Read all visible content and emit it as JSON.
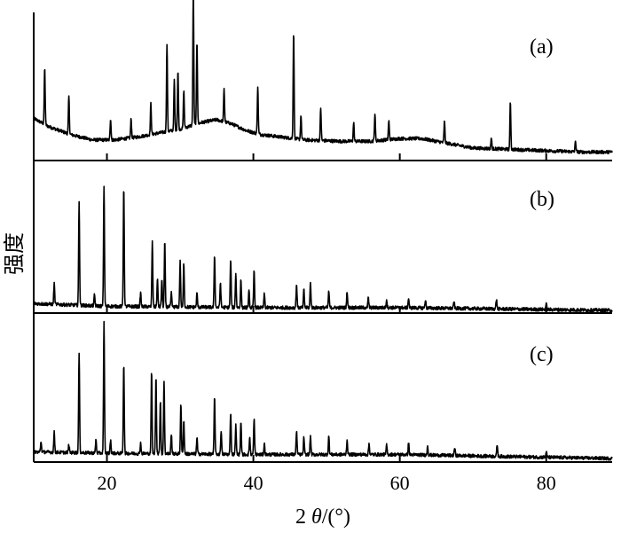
{
  "chart_data": {
    "type": "line",
    "title": "",
    "xlabel": "2θ/(°)",
    "ylabel": "强度",
    "xlim": [
      10,
      89
    ],
    "xticks": [
      20,
      40,
      60,
      80
    ],
    "xtick_labels": [
      "20",
      "40",
      "60",
      "80"
    ],
    "grid": false,
    "panels": [
      {
        "label": "(a)",
        "baseline": [
          [
            10,
            0.28
          ],
          [
            12,
            0.22
          ],
          [
            15,
            0.16
          ],
          [
            18,
            0.12
          ],
          [
            21,
            0.12
          ],
          [
            24,
            0.14
          ],
          [
            27,
            0.17
          ],
          [
            30,
            0.2
          ],
          [
            33,
            0.25
          ],
          [
            35,
            0.27
          ],
          [
            37,
            0.24
          ],
          [
            39,
            0.19
          ],
          [
            41,
            0.16
          ],
          [
            44,
            0.14
          ],
          [
            47,
            0.12
          ],
          [
            52,
            0.11
          ],
          [
            56,
            0.11
          ],
          [
            60,
            0.13
          ],
          [
            63,
            0.13
          ],
          [
            66,
            0.1
          ],
          [
            70,
            0.06
          ],
          [
            75,
            0.05
          ],
          [
            80,
            0.04
          ],
          [
            85,
            0.03
          ],
          [
            89,
            0.03
          ]
        ],
        "peaks": [
          [
            11.5,
            0.42
          ],
          [
            14.8,
            0.28
          ],
          [
            20.5,
            0.16
          ],
          [
            23.3,
            0.14
          ],
          [
            26,
            0.23
          ],
          [
            28.2,
            0.65
          ],
          [
            29.2,
            0.37
          ],
          [
            29.7,
            0.44
          ],
          [
            30.5,
            0.28
          ],
          [
            31.8,
            1.0
          ],
          [
            32.3,
            0.62
          ],
          [
            36,
            0.24
          ],
          [
            40.6,
            0.35
          ],
          [
            45.5,
            0.8
          ],
          [
            46.5,
            0.18
          ],
          [
            49.2,
            0.24
          ],
          [
            53.7,
            0.14
          ],
          [
            56.6,
            0.2
          ],
          [
            58.5,
            0.14
          ],
          [
            66.1,
            0.16
          ],
          [
            72.5,
            0.08
          ],
          [
            75.1,
            0.35
          ],
          [
            84,
            0.08
          ]
        ]
      },
      {
        "label": "(b)",
        "baseline": [
          [
            10,
            0.05
          ],
          [
            20,
            0.03
          ],
          [
            40,
            0.02
          ],
          [
            60,
            0.02
          ],
          [
            89,
            0.0
          ]
        ],
        "peaks": [
          [
            12.8,
            0.15
          ],
          [
            16.2,
            0.75
          ],
          [
            18.3,
            0.08
          ],
          [
            19.6,
            0.88
          ],
          [
            22.3,
            0.88
          ],
          [
            24.6,
            0.1
          ],
          [
            26.2,
            0.47
          ],
          [
            26.9,
            0.2
          ],
          [
            27.5,
            0.2
          ],
          [
            27.9,
            0.47
          ],
          [
            28.8,
            0.1
          ],
          [
            30,
            0.33
          ],
          [
            30.5,
            0.32
          ],
          [
            32.3,
            0.1
          ],
          [
            34.7,
            0.38
          ],
          [
            35.5,
            0.18
          ],
          [
            36.9,
            0.35
          ],
          [
            37.6,
            0.25
          ],
          [
            38.3,
            0.2
          ],
          [
            39.4,
            0.12
          ],
          [
            40.1,
            0.27
          ],
          [
            41.5,
            0.1
          ],
          [
            45.9,
            0.17
          ],
          [
            46.9,
            0.13
          ],
          [
            47.8,
            0.18
          ],
          [
            50.3,
            0.12
          ],
          [
            52.8,
            0.12
          ],
          [
            55.7,
            0.07
          ],
          [
            58.2,
            0.06
          ],
          [
            61.2,
            0.07
          ],
          [
            63.5,
            0.06
          ],
          [
            67.4,
            0.05
          ],
          [
            73.2,
            0.07
          ],
          [
            80,
            0.04
          ]
        ]
      },
      {
        "label": "(c)",
        "baseline": [
          [
            10,
            0.05
          ],
          [
            20,
            0.04
          ],
          [
            40,
            0.03
          ],
          [
            60,
            0.03
          ],
          [
            89,
            0.0
          ]
        ],
        "peaks": [
          [
            11,
            0.08
          ],
          [
            12.8,
            0.15
          ],
          [
            14.8,
            0.06
          ],
          [
            16.2,
            0.75
          ],
          [
            18.5,
            0.1
          ],
          [
            19.6,
            0.98
          ],
          [
            20.5,
            0.1
          ],
          [
            22.3,
            0.68
          ],
          [
            24.6,
            0.08
          ],
          [
            26.1,
            0.62
          ],
          [
            26.7,
            0.58
          ],
          [
            27.3,
            0.4
          ],
          [
            27.8,
            0.55
          ],
          [
            28.8,
            0.15
          ],
          [
            30.1,
            0.38
          ],
          [
            30.5,
            0.25
          ],
          [
            32.3,
            0.12
          ],
          [
            34.7,
            0.43
          ],
          [
            35.6,
            0.18
          ],
          [
            36.9,
            0.32
          ],
          [
            37.6,
            0.22
          ],
          [
            38.3,
            0.25
          ],
          [
            39.5,
            0.13
          ],
          [
            40.1,
            0.27
          ],
          [
            41.5,
            0.08
          ],
          [
            45.9,
            0.18
          ],
          [
            46.9,
            0.13
          ],
          [
            47.8,
            0.14
          ],
          [
            50.3,
            0.14
          ],
          [
            52.8,
            0.11
          ],
          [
            55.8,
            0.08
          ],
          [
            58.2,
            0.07
          ],
          [
            61.2,
            0.09
          ],
          [
            63.8,
            0.07
          ],
          [
            67.5,
            0.06
          ],
          [
            73.3,
            0.09
          ],
          [
            80,
            0.04
          ]
        ]
      }
    ]
  }
}
